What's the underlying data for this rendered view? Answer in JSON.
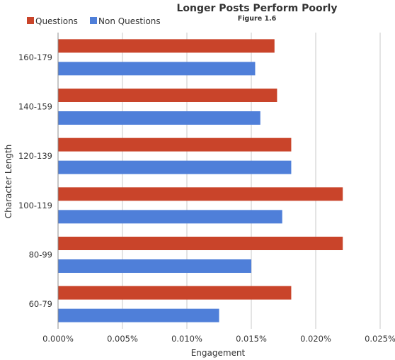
{
  "chart_data": {
    "type": "bar",
    "orientation": "horizontal",
    "title": "Longer Posts Perform Poorly",
    "subtitle": "Figure 1.6",
    "xlabel": "Engagement",
    "ylabel": "Character Length",
    "categories": [
      "160-179",
      "140-159",
      "120-139",
      "100-119",
      "80-99",
      "60-79"
    ],
    "series": [
      {
        "name": "Questions",
        "color": "#c9442a",
        "values": [
          0.0168,
          0.017,
          0.0181,
          0.0221,
          0.0221,
          0.0181
        ]
      },
      {
        "name": "Non Questions",
        "color": "#4f7fd9",
        "values": [
          0.0153,
          0.0157,
          0.0181,
          0.0174,
          0.015,
          0.0125
        ]
      }
    ],
    "xlim": [
      0,
      0.025
    ],
    "xticks": [
      0,
      0.005,
      0.01,
      0.015,
      0.02,
      0.025
    ],
    "xtick_labels": [
      "0.000%",
      "0.005%",
      "0.010%",
      "0.015%",
      "0.020%",
      "0.025%"
    ],
    "grid": "vertical",
    "legend_position": "top-left"
  }
}
